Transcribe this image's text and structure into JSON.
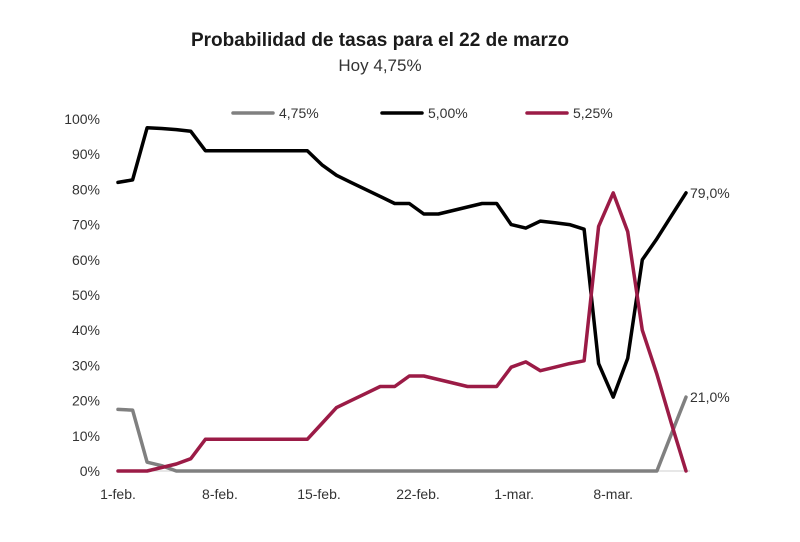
{
  "chart_data": {
    "type": "line",
    "title": "Probabilidad de tasas para el 22 de marzo",
    "subtitle": "Hoy 4,75%",
    "xlabel": "",
    "ylabel": "",
    "ylim": [
      0,
      100
    ],
    "y_ticks": [
      "0%",
      "10%",
      "20%",
      "30%",
      "40%",
      "50%",
      "60%",
      "70%",
      "80%",
      "90%",
      "100%"
    ],
    "x_ticks": [
      "1-feb.",
      "8-feb.",
      "15-feb.",
      "22-feb.",
      "1-mar.",
      "8-mar."
    ],
    "legend_position": "top",
    "grid": false,
    "series": [
      {
        "name": "4,75%",
        "color": "#808080",
        "points": [
          [
            0,
            17.5
          ],
          [
            1,
            17.3
          ],
          [
            2,
            2.5
          ],
          [
            3,
            1.5
          ],
          [
            4,
            0
          ],
          [
            5,
            0
          ],
          [
            6,
            0
          ],
          [
            7,
            0
          ],
          [
            8,
            0
          ],
          [
            9,
            0
          ],
          [
            10,
            0
          ],
          [
            11,
            0
          ],
          [
            12,
            0
          ],
          [
            13,
            0
          ],
          [
            14,
            0
          ],
          [
            15,
            0
          ],
          [
            16,
            0
          ],
          [
            17,
            0
          ],
          [
            18,
            0
          ],
          [
            19,
            0
          ],
          [
            20,
            0
          ],
          [
            21,
            0
          ],
          [
            22,
            0
          ],
          [
            23,
            0
          ],
          [
            24,
            0
          ],
          [
            25,
            0
          ],
          [
            26,
            0
          ],
          [
            27,
            0
          ],
          [
            28,
            0
          ],
          [
            29,
            0
          ],
          [
            30,
            0
          ],
          [
            31,
            0
          ],
          [
            32,
            0
          ],
          [
            33,
            0
          ],
          [
            34,
            0
          ],
          [
            35,
            0
          ],
          [
            36,
            0
          ],
          [
            37,
            0
          ],
          [
            38,
            10.5
          ],
          [
            39,
            21
          ]
        ]
      },
      {
        "name": "5,00%",
        "color": "#000000",
        "points": [
          [
            0,
            82
          ],
          [
            1,
            82.7
          ],
          [
            2,
            97.5
          ],
          [
            3,
            97.3
          ],
          [
            4,
            97
          ],
          [
            5,
            96.5
          ],
          [
            6,
            91
          ],
          [
            7,
            91
          ],
          [
            8,
            91
          ],
          [
            9,
            91
          ],
          [
            10,
            91
          ],
          [
            11,
            91
          ],
          [
            12,
            91
          ],
          [
            13,
            91
          ],
          [
            14,
            87
          ],
          [
            15,
            84
          ],
          [
            16,
            82
          ],
          [
            17,
            80
          ],
          [
            18,
            78
          ],
          [
            19,
            76
          ],
          [
            20,
            76
          ],
          [
            21,
            73
          ],
          [
            22,
            73
          ],
          [
            23,
            74
          ],
          [
            24,
            75
          ],
          [
            25,
            76
          ],
          [
            26,
            76
          ],
          [
            27,
            70
          ],
          [
            28,
            69
          ],
          [
            29,
            71
          ],
          [
            30,
            70.5
          ],
          [
            31,
            70
          ],
          [
            32,
            68.7
          ],
          [
            33,
            30.5
          ],
          [
            34,
            21
          ],
          [
            35,
            32
          ],
          [
            36,
            60
          ],
          [
            37,
            66
          ],
          [
            38,
            72.5
          ],
          [
            39,
            79
          ]
        ]
      },
      {
        "name": "5,25%",
        "color": "#9b1b46",
        "points": [
          [
            0,
            0
          ],
          [
            1,
            0
          ],
          [
            2,
            0
          ],
          [
            3,
            1
          ],
          [
            4,
            2
          ],
          [
            5,
            3.5
          ],
          [
            6,
            9
          ],
          [
            7,
            9
          ],
          [
            8,
            9
          ],
          [
            9,
            9
          ],
          [
            10,
            9
          ],
          [
            11,
            9
          ],
          [
            12,
            9
          ],
          [
            13,
            9
          ],
          [
            14,
            13.5
          ],
          [
            15,
            18
          ],
          [
            16,
            20
          ],
          [
            17,
            22
          ],
          [
            18,
            24
          ],
          [
            19,
            24
          ],
          [
            20,
            27
          ],
          [
            21,
            27
          ],
          [
            22,
            26
          ],
          [
            23,
            25
          ],
          [
            24,
            24
          ],
          [
            25,
            24
          ],
          [
            26,
            24
          ],
          [
            27,
            29.5
          ],
          [
            28,
            31
          ],
          [
            29,
            28.5
          ],
          [
            30,
            29.5
          ],
          [
            31,
            30.5
          ],
          [
            32,
            31.3
          ],
          [
            33,
            69.5
          ],
          [
            34,
            79
          ],
          [
            35,
            68
          ],
          [
            36,
            40
          ],
          [
            37,
            27.5
          ],
          [
            38,
            13.5
          ],
          [
            39,
            0
          ]
        ]
      }
    ],
    "end_labels": [
      {
        "series": "5,00%",
        "text": "79,0%"
      },
      {
        "series": "4,75%",
        "text": "21,0%"
      }
    ]
  }
}
